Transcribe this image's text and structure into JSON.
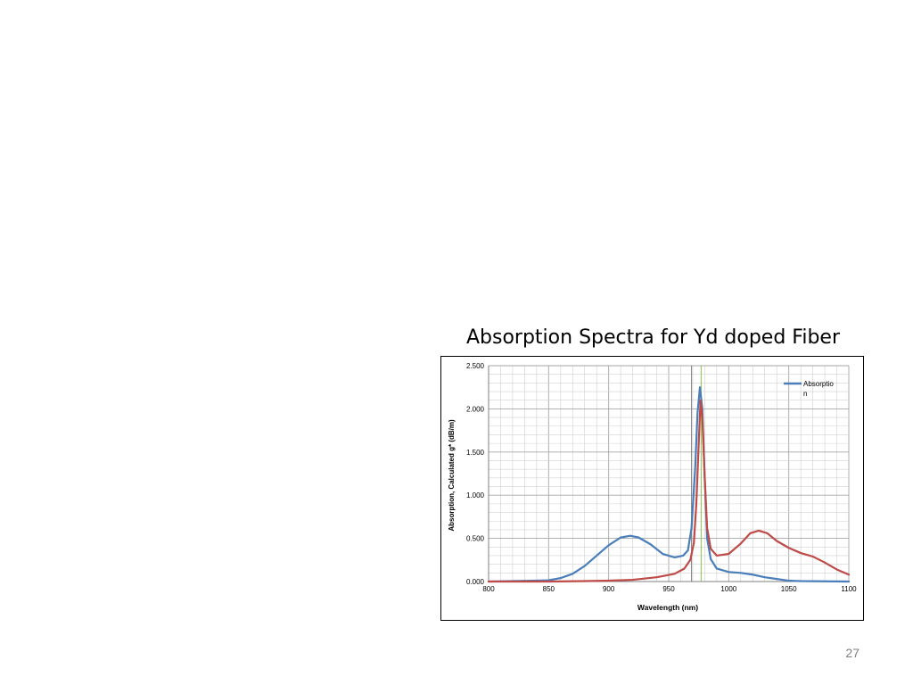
{
  "slide": {
    "title": "Absorption Spectra for Yd doped Fiber",
    "page_number": "27"
  },
  "chart_data": {
    "type": "line",
    "xlabel": "Wavelength (nm)",
    "ylabel": "Absorption, Calculated g* (dB/m)",
    "xlim": [
      800,
      1100
    ],
    "ylim": [
      0,
      2.5
    ],
    "x_ticks": [
      "800",
      "850",
      "900",
      "950",
      "1000",
      "1050",
      "1100"
    ],
    "y_ticks": [
      "0.000",
      "0.500",
      "1.000",
      "1.500",
      "2.000",
      "2.500"
    ],
    "grid": true,
    "legend": {
      "placement": "top-right",
      "entries": [
        "Absorptio",
        "n"
      ]
    },
    "series": [
      {
        "name": "Absorption",
        "color": "#4a7ebb",
        "points": [
          [
            800,
            0.0
          ],
          [
            820,
            0.005
          ],
          [
            840,
            0.01
          ],
          [
            850,
            0.015
          ],
          [
            860,
            0.04
          ],
          [
            870,
            0.09
          ],
          [
            880,
            0.18
          ],
          [
            890,
            0.3
          ],
          [
            900,
            0.42
          ],
          [
            910,
            0.51
          ],
          [
            918,
            0.53
          ],
          [
            925,
            0.51
          ],
          [
            935,
            0.43
          ],
          [
            945,
            0.32
          ],
          [
            955,
            0.28
          ],
          [
            962,
            0.3
          ],
          [
            966,
            0.36
          ],
          [
            969,
            0.62
          ],
          [
            972,
            1.3
          ],
          [
            974,
            1.95
          ],
          [
            976,
            2.25
          ],
          [
            978,
            2.0
          ],
          [
            980,
            1.2
          ],
          [
            982,
            0.5
          ],
          [
            985,
            0.26
          ],
          [
            990,
            0.15
          ],
          [
            1000,
            0.11
          ],
          [
            1010,
            0.1
          ],
          [
            1020,
            0.08
          ],
          [
            1030,
            0.05
          ],
          [
            1040,
            0.03
          ],
          [
            1050,
            0.01
          ],
          [
            1060,
            0.005
          ],
          [
            1100,
            0.0
          ]
        ]
      },
      {
        "color": "#be4b48",
        "points": [
          [
            800,
            0.0
          ],
          [
            850,
            0.0
          ],
          [
            880,
            0.005
          ],
          [
            900,
            0.01
          ],
          [
            920,
            0.02
          ],
          [
            940,
            0.05
          ],
          [
            955,
            0.09
          ],
          [
            963,
            0.15
          ],
          [
            968,
            0.25
          ],
          [
            971,
            0.45
          ],
          [
            973,
            0.9
          ],
          [
            975,
            1.6
          ],
          [
            976.5,
            2.1
          ],
          [
            978,
            1.9
          ],
          [
            980,
            1.2
          ],
          [
            982,
            0.62
          ],
          [
            985,
            0.38
          ],
          [
            990,
            0.3
          ],
          [
            1000,
            0.32
          ],
          [
            1010,
            0.44
          ],
          [
            1018,
            0.56
          ],
          [
            1025,
            0.59
          ],
          [
            1032,
            0.56
          ],
          [
            1040,
            0.47
          ],
          [
            1050,
            0.39
          ],
          [
            1060,
            0.33
          ],
          [
            1070,
            0.29
          ],
          [
            1080,
            0.22
          ],
          [
            1090,
            0.14
          ],
          [
            1100,
            0.08
          ]
        ]
      }
    ],
    "markers": [
      {
        "x": 969,
        "color": "#7f7f7f"
      },
      {
        "x": 977,
        "color": "#8bc34a"
      }
    ]
  }
}
